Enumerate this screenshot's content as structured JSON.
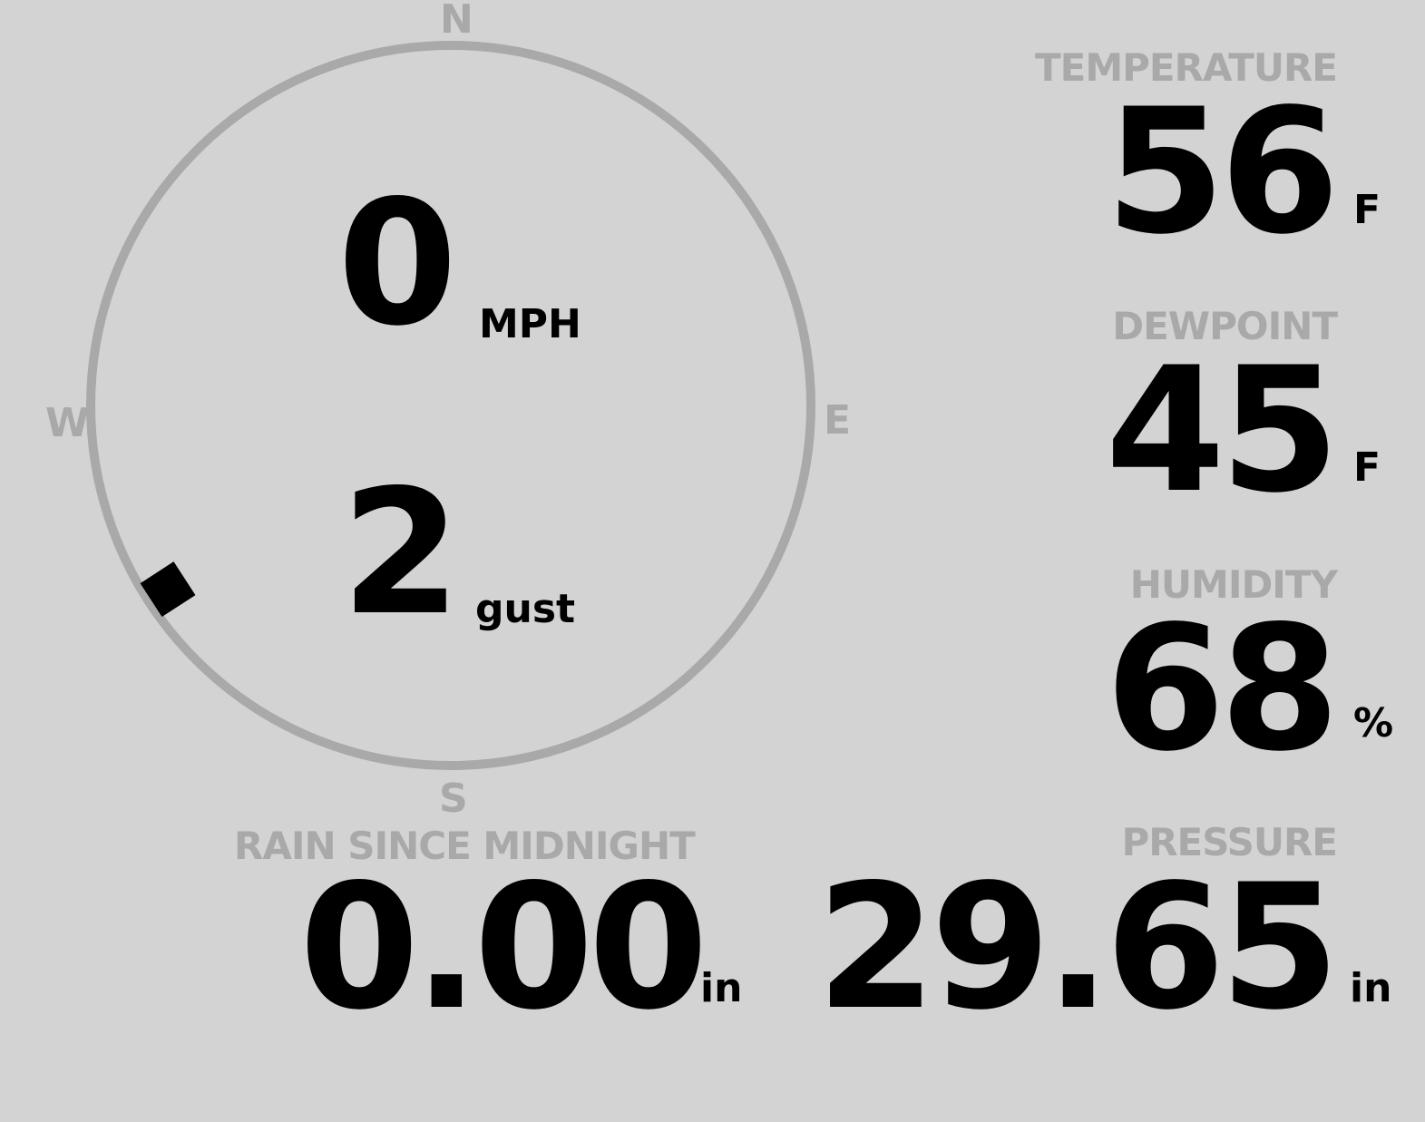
{
  "wind": {
    "speed": "0",
    "speed_unit": "MPH",
    "gust": "2",
    "gust_label": "gust",
    "direction_degrees": 237,
    "compass": {
      "n": "N",
      "e": "E",
      "s": "S",
      "w": "W"
    }
  },
  "temperature": {
    "label": "TEMPERATURE",
    "value": "56",
    "unit": "F"
  },
  "dewpoint": {
    "label": "DEWPOINT",
    "value": "45",
    "unit": "F"
  },
  "humidity": {
    "label": "HUMIDITY",
    "value": "68",
    "unit": "%"
  },
  "rain": {
    "label": "RAIN SINCE MIDNIGHT",
    "value": "0.00",
    "unit": "in"
  },
  "pressure": {
    "label": "PRESSURE",
    "value": "29.65",
    "unit": "in"
  },
  "colors": {
    "background": "#d3d3d3",
    "label": "#a9a9a9",
    "value": "#000000"
  }
}
